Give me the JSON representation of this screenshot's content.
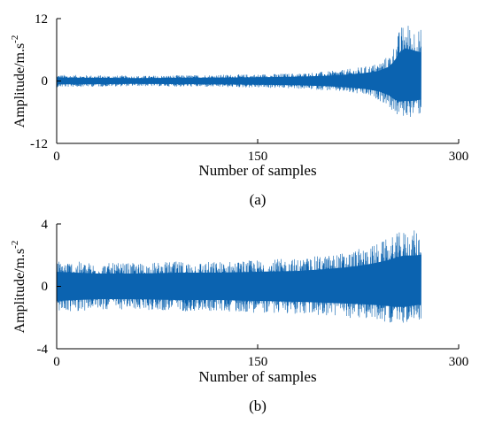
{
  "chart_data": [
    {
      "type": "line",
      "panel_label": "(a)",
      "xlabel": "Number of samples",
      "ylabel_main": "Amplitude/m.s",
      "ylabel_sup": "-2",
      "xlim": [
        0,
        300
      ],
      "ylim": [
        -12,
        12
      ],
      "xticks": [
        0,
        150,
        300
      ],
      "yticks": [
        12,
        0,
        -12
      ],
      "color": "#0B63B0",
      "grid": false,
      "envelope": {
        "x": [
          0,
          30,
          60,
          90,
          120,
          150,
          180,
          200,
          215,
          230,
          240,
          248,
          252,
          256,
          260,
          264,
          268,
          272
        ],
        "upper": [
          1.2,
          1.1,
          1.0,
          1.1,
          1.2,
          1.3,
          1.5,
          1.8,
          2.2,
          2.8,
          3.5,
          5.0,
          7.0,
          10.0,
          11.5,
          11.0,
          10.5,
          10.0
        ],
        "lower": [
          -1.2,
          -1.1,
          -1.0,
          -1.1,
          -1.2,
          -1.3,
          -1.5,
          -1.8,
          -2.2,
          -2.8,
          -3.6,
          -5.0,
          -6.5,
          -7.2,
          -7.0,
          -7.0,
          -6.8,
          -6.5
        ]
      }
    },
    {
      "type": "line",
      "panel_label": "(b)",
      "xlabel": "Number of samples",
      "ylabel_main": "Amplitude/m.s",
      "ylabel_sup": "-2",
      "xlim": [
        0,
        300
      ],
      "ylim": [
        -4,
        4
      ],
      "xticks": [
        0,
        150,
        300
      ],
      "yticks": [
        4,
        0,
        -4
      ],
      "color": "#0B63B0",
      "grid": false,
      "envelope": {
        "x": [
          0,
          30,
          60,
          90,
          120,
          150,
          180,
          200,
          215,
          230,
          240,
          248,
          252,
          256,
          260,
          264,
          268,
          272
        ],
        "upper": [
          1.7,
          1.5,
          1.5,
          1.6,
          1.6,
          1.7,
          1.8,
          2.0,
          2.2,
          2.5,
          2.8,
          3.1,
          3.3,
          3.5,
          3.6,
          3.6,
          3.6,
          3.7
        ],
        "lower": [
          -1.7,
          -1.5,
          -1.5,
          -1.6,
          -1.6,
          -1.7,
          -1.8,
          -1.9,
          -2.0,
          -2.1,
          -2.2,
          -2.3,
          -2.4,
          -2.4,
          -2.4,
          -2.3,
          -2.2,
          -2.1
        ]
      }
    }
  ]
}
